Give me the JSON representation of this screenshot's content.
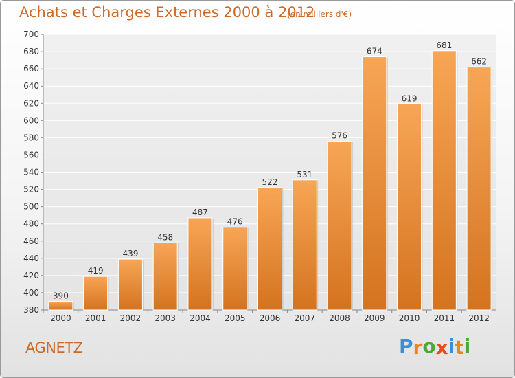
{
  "header": {
    "title": "Achats et Charges Externes 2000 à 2012",
    "unit": "(en milliers d'€)"
  },
  "commune": "AGNETZ",
  "logo": {
    "text": "Proxiti",
    "colors": [
      "#3a8fd6",
      "#e8851c",
      "#4aa834",
      "#e84b1c",
      "#3a8fd6",
      "#e8851c",
      "#4aa834"
    ]
  },
  "colors": {
    "accent": "#cc6a2a",
    "bar_light": "#f7a656",
    "bar_dark": "#d4731f"
  },
  "chart_data": {
    "type": "bar",
    "categories": [
      "2000",
      "2001",
      "2002",
      "2003",
      "2004",
      "2005",
      "2006",
      "2007",
      "2008",
      "2009",
      "2010",
      "2011",
      "2012"
    ],
    "values": [
      390,
      419,
      439,
      458,
      487,
      476,
      522,
      531,
      576,
      674,
      619,
      681,
      662
    ],
    "title": "Achats et Charges Externes 2000 à 2012",
    "ylim": [
      380,
      700
    ],
    "yticks": [
      380,
      400,
      420,
      440,
      460,
      480,
      500,
      520,
      540,
      560,
      580,
      600,
      620,
      640,
      660,
      680,
      700
    ],
    "grid": true
  }
}
